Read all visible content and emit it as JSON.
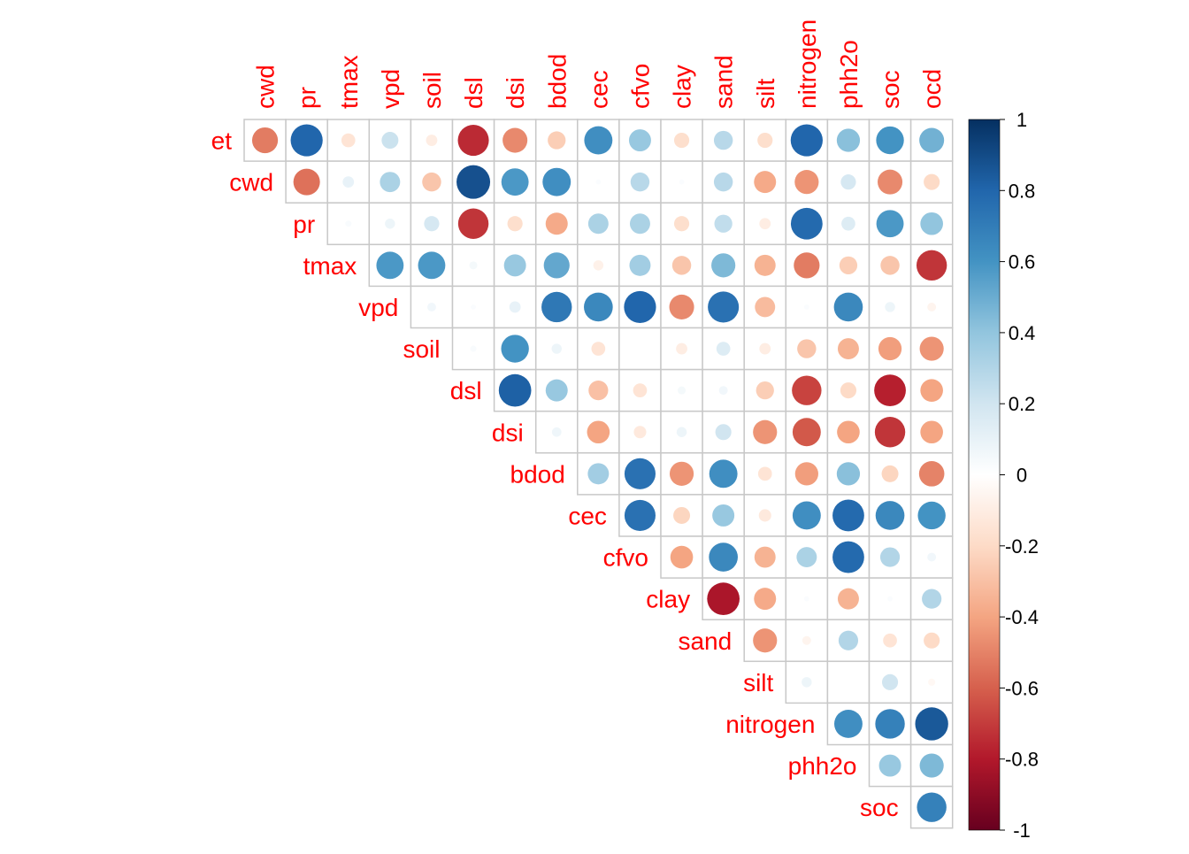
{
  "chart_data": {
    "type": "heatmap",
    "style": "correlation-matrix-upper-triangle-circles",
    "row_labels": [
      "et",
      "cwd",
      "pr",
      "tmax",
      "vpd",
      "soil",
      "dsl",
      "dsi",
      "bdod",
      "cec",
      "cfvo",
      "clay",
      "sand",
      "silt",
      "nitrogen",
      "phh2o",
      "soc"
    ],
    "col_labels": [
      "cwd",
      "pr",
      "tmax",
      "vpd",
      "soil",
      "dsl",
      "dsi",
      "bdod",
      "cec",
      "cfvo",
      "clay",
      "sand",
      "silt",
      "nitrogen",
      "phh2o",
      "soc",
      "ocd"
    ],
    "values": [
      [
        -0.52,
        0.8,
        -0.15,
        0.22,
        -0.1,
        -0.75,
        -0.48,
        -0.25,
        0.62,
        0.38,
        -0.18,
        0.28,
        -0.18,
        0.8,
        0.42,
        0.6,
        0.48
      ],
      [
        null,
        -0.55,
        0.1,
        0.32,
        -0.28,
        0.88,
        0.58,
        0.62,
        0.02,
        0.28,
        0.02,
        0.28,
        -0.38,
        -0.45,
        0.18,
        -0.48,
        -0.2
      ],
      [
        null,
        null,
        0.03,
        0.08,
        0.18,
        -0.72,
        -0.18,
        -0.38,
        0.32,
        0.32,
        -0.18,
        0.25,
        -0.1,
        0.78,
        0.15,
        0.58,
        0.4
      ],
      [
        null,
        null,
        null,
        0.58,
        0.58,
        0.05,
        0.38,
        0.52,
        -0.08,
        0.35,
        -0.28,
        0.45,
        -0.35,
        -0.52,
        -0.25,
        -0.28,
        -0.72
      ],
      [
        null,
        null,
        null,
        null,
        0.06,
        0.02,
        0.1,
        0.72,
        0.65,
        0.8,
        -0.48,
        0.75,
        -0.32,
        0.02,
        0.65,
        0.08,
        -0.06
      ],
      [
        null,
        null,
        null,
        null,
        null,
        0.03,
        0.6,
        0.08,
        -0.15,
        0.0,
        -0.1,
        0.15,
        -0.1,
        -0.28,
        -0.35,
        -0.42,
        -0.45
      ],
      [
        null,
        null,
        null,
        null,
        null,
        null,
        0.82,
        0.38,
        -0.3,
        -0.15,
        0.05,
        0.06,
        -0.25,
        -0.68,
        -0.2,
        -0.78,
        -0.4
      ],
      [
        null,
        null,
        null,
        null,
        null,
        null,
        null,
        0.07,
        -0.4,
        -0.12,
        0.08,
        0.2,
        -0.45,
        -0.62,
        -0.4,
        -0.72,
        -0.4
      ],
      [
        null,
        null,
        null,
        null,
        null,
        null,
        null,
        null,
        0.35,
        0.75,
        -0.45,
        0.62,
        -0.15,
        -0.42,
        0.42,
        -0.22,
        -0.5
      ],
      [
        null,
        null,
        null,
        null,
        null,
        null,
        null,
        null,
        null,
        0.75,
        -0.22,
        0.38,
        -0.12,
        0.62,
        0.78,
        0.65,
        0.6
      ],
      [
        null,
        null,
        null,
        null,
        null,
        null,
        null,
        null,
        null,
        null,
        -0.4,
        0.65,
        -0.35,
        0.32,
        0.78,
        0.3,
        0.06
      ],
      [
        null,
        null,
        null,
        null,
        null,
        null,
        null,
        null,
        null,
        null,
        null,
        -0.82,
        -0.38,
        0.02,
        -0.35,
        0.02,
        0.3
      ],
      [
        null,
        null,
        null,
        null,
        null,
        null,
        null,
        null,
        null,
        null,
        null,
        null,
        -0.45,
        -0.06,
        0.3,
        -0.15,
        -0.2
      ],
      [
        null,
        null,
        null,
        null,
        null,
        null,
        null,
        null,
        null,
        null,
        null,
        null,
        null,
        0.08,
        0.0,
        0.2,
        -0.04
      ],
      [
        null,
        null,
        null,
        null,
        null,
        null,
        null,
        null,
        null,
        null,
        null,
        null,
        null,
        null,
        0.62,
        0.68,
        0.85
      ],
      [
        null,
        null,
        null,
        null,
        null,
        null,
        null,
        null,
        null,
        null,
        null,
        null,
        null,
        null,
        null,
        0.38,
        0.45
      ],
      [
        null,
        null,
        null,
        null,
        null,
        null,
        null,
        null,
        null,
        null,
        null,
        null,
        null,
        null,
        null,
        null,
        0.68
      ]
    ],
    "value_range": [
      -1,
      1
    ],
    "colorbar": {
      "ticks": [
        "1",
        "0.8",
        "0.6",
        "0.4",
        "0.2",
        "0",
        "-0.2",
        "-0.4",
        "-0.6",
        "-0.8",
        "-1"
      ],
      "colors_low_to_high": [
        "#67001f",
        "#b2182b",
        "#d6604d",
        "#f4a582",
        "#fddbc7",
        "#ffffff",
        "#d1e5f0",
        "#92c5de",
        "#4393c3",
        "#2166ac",
        "#053061"
      ]
    },
    "label_color": "#ff0000",
    "grid_color": "#c8c8c8",
    "legend_placement": "right"
  }
}
